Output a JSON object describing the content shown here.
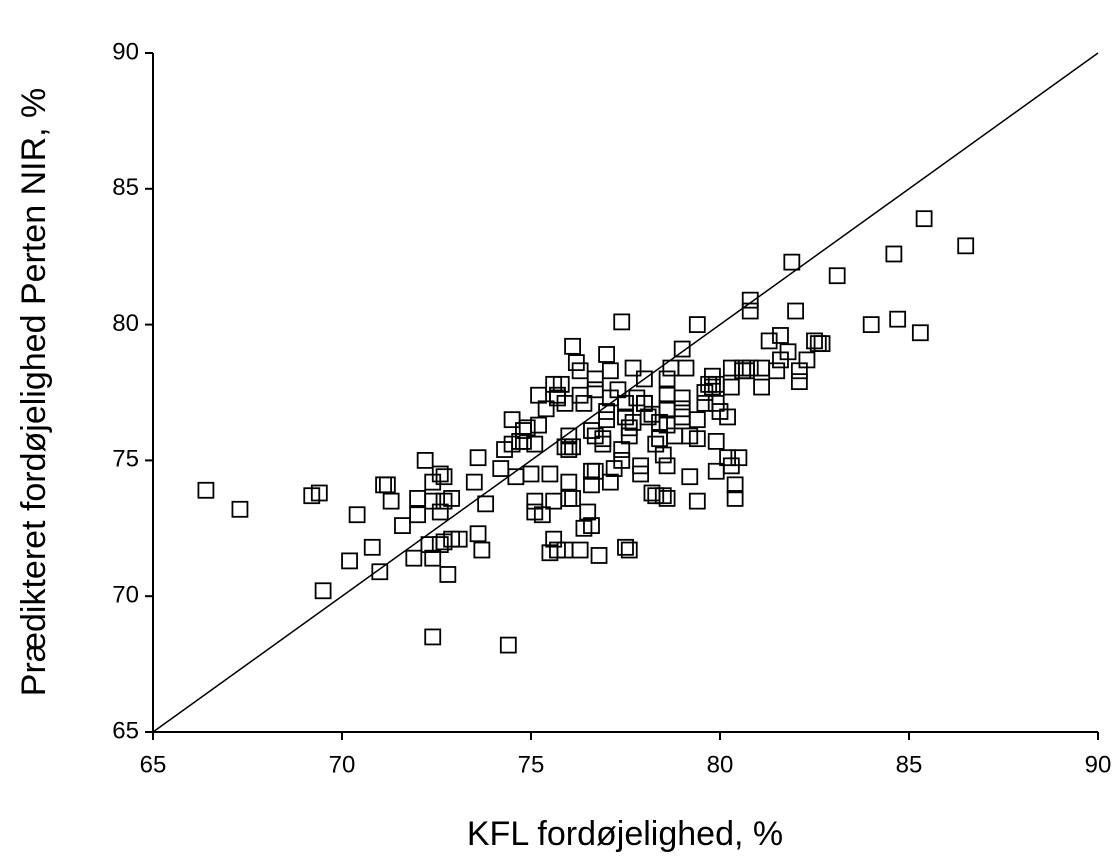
{
  "chart_data": {
    "type": "scatter",
    "x_label": "KFL fordøjelighed, %",
    "y_label": "Prædikteret fordøjelighed Perten NIR, %",
    "xlim": [
      65,
      90
    ],
    "ylim": [
      65,
      90
    ],
    "xticks": [
      65,
      70,
      75,
      80,
      85,
      90
    ],
    "yticks": [
      65,
      70,
      75,
      80,
      85,
      90
    ],
    "grid": false,
    "marker": "open-square",
    "color": "#000000",
    "x": [
      66.4,
      67.3,
      69.2,
      69.4,
      69.5,
      70.2,
      70.4,
      70.8,
      71.0,
      71.1,
      71.2,
      71.3,
      71.6,
      71.9,
      72.0,
      72.0,
      72.2,
      72.3,
      72.4,
      72.4,
      72.4,
      72.4,
      72.6,
      72.6,
      72.7,
      72.6,
      72.7,
      72.7,
      72.8,
      72.9,
      72.9,
      73.1,
      73.5,
      73.6,
      73.6,
      73.7,
      73.8,
      74.2,
      74.3,
      74.5,
      74.4,
      74.5,
      74.6,
      74.7,
      74.8,
      74.8,
      74.9,
      75.0,
      75.1,
      75.3,
      75.1,
      75.1,
      75.2,
      75.2,
      75.4,
      75.5,
      75.5,
      75.6,
      75.7,
      75.6,
      75.6,
      75.8,
      75.7,
      75.7,
      75.9,
      75.9,
      75.9,
      76.0,
      76.0,
      76.1,
      76.0,
      76.1,
      76.0,
      76.1,
      76.2,
      76.3,
      76.3,
      76.4,
      76.3,
      76.4,
      76.5,
      76.6,
      76.6,
      76.7,
      76.6,
      76.6,
      76.7,
      76.7,
      76.7,
      76.8,
      76.9,
      76.9,
      77.0,
      77.0,
      77.0,
      77.1,
      77.1,
      77.3,
      77.1,
      77.2,
      77.4,
      77.4,
      77.4,
      77.5,
      77.5,
      77.5,
      77.6,
      77.6,
      77.6,
      77.7,
      77.7,
      77.8,
      77.9,
      77.9,
      78.0,
      78.0,
      78.0,
      78.1,
      78.2,
      78.2,
      78.3,
      78.3,
      78.4,
      78.4,
      78.6,
      78.5,
      78.6,
      78.5,
      78.6,
      78.6,
      78.6,
      78.6,
      78.7,
      78.8,
      79.0,
      79.0,
      79.0,
      79.0,
      79.1,
      79.2,
      79.2,
      79.4,
      79.4,
      79.4,
      79.4,
      79.6,
      79.6,
      79.7,
      79.8,
      79.8,
      79.9,
      79.9,
      79.9,
      79.9,
      80.0,
      80.2,
      80.2,
      80.3,
      80.3,
      80.3,
      80.4,
      80.4,
      80.5,
      80.6,
      80.6,
      80.7,
      80.8,
      80.8,
      80.8,
      81.1,
      81.1,
      81.3,
      81.5,
      81.6,
      81.6,
      81.8,
      81.9,
      82.0,
      82.1,
      82.1,
      82.3,
      82.5,
      82.6,
      82.7,
      83.1,
      84.0,
      84.6,
      84.7,
      85.3,
      85.4,
      86.5
    ],
    "y": [
      73.9,
      73.2,
      73.7,
      73.8,
      70.2,
      71.3,
      73.0,
      71.8,
      70.9,
      74.1,
      74.1,
      73.5,
      72.6,
      71.4,
      73.6,
      73.0,
      75.0,
      71.9,
      71.4,
      68.5,
      74.2,
      73.5,
      71.9,
      74.5,
      74.4,
      73.1,
      73.5,
      72.0,
      70.8,
      73.6,
      72.1,
      72.1,
      74.2,
      75.1,
      72.3,
      71.7,
      73.4,
      74.7,
      75.4,
      75.6,
      68.2,
      76.5,
      74.4,
      75.7,
      75.7,
      76.1,
      76.2,
      74.5,
      73.1,
      73.0,
      73.5,
      75.6,
      77.4,
      76.3,
      76.9,
      74.5,
      71.6,
      72.1,
      71.7,
      73.5,
      77.8,
      77.8,
      77.4,
      77.3,
      77.1,
      75.5,
      71.7,
      75.9,
      75.4,
      75.5,
      73.6,
      73.6,
      74.2,
      79.2,
      78.6,
      78.3,
      77.4,
      77.1,
      71.7,
      72.5,
      73.1,
      74.1,
      74.6,
      74.6,
      72.6,
      76.1,
      75.9,
      77.6,
      78.0,
      71.5,
      75.6,
      75.8,
      76.8,
      76.5,
      78.9,
      78.3,
      77.3,
      77.6,
      74.2,
      74.7,
      75.4,
      75.0,
      80.1,
      77.1,
      76.6,
      71.8,
      71.7,
      75.9,
      76.2,
      78.4,
      76.4,
      77.3,
      74.8,
      74.5,
      77.1,
      77.1,
      78.0,
      76.6,
      76.7,
      73.8,
      73.7,
      75.6,
      75.8,
      76.4,
      76.3,
      75.2,
      74.8,
      73.7,
      73.6,
      76.9,
      77.4,
      78.0,
      78.4,
      75.9,
      76.6,
      76.9,
      77.3,
      79.1,
      78.4,
      75.9,
      74.4,
      75.8,
      76.5,
      73.5,
      80.0,
      77.5,
      77.1,
      77.8,
      78.1,
      77.7,
      77.8,
      74.6,
      75.7,
      77.1,
      76.8,
      75.1,
      76.6,
      77.7,
      78.4,
      74.8,
      74.1,
      73.6,
      75.1,
      78.3,
      78.4,
      78.3,
      78.4,
      80.9,
      80.5,
      78.4,
      77.7,
      79.4,
      78.3,
      78.7,
      79.6,
      79.0,
      82.3,
      80.5,
      77.9,
      78.3,
      78.7,
      79.4,
      79.3,
      79.3,
      81.8,
      80.0,
      82.6,
      80.2,
      79.7,
      83.9,
      82.9
    ]
  }
}
